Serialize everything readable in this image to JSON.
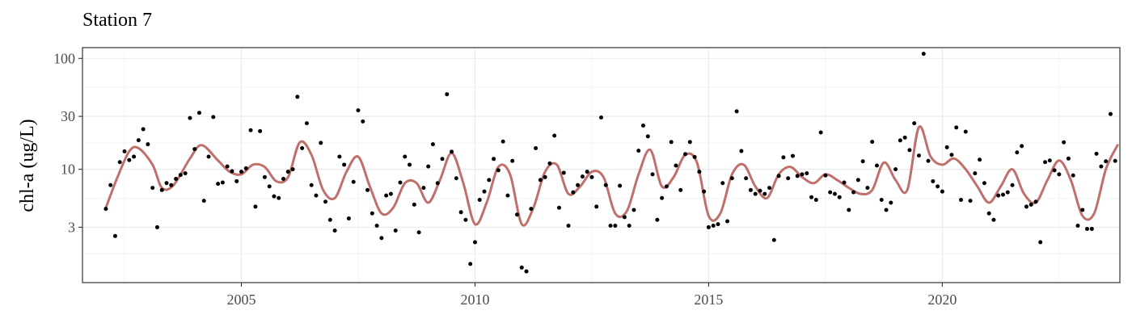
{
  "chart_data": {
    "type": "scatter",
    "title": "Station 7",
    "xlabel": "",
    "ylabel": "chl-a (ug/L)",
    "y_scale": "log10",
    "xlim": [
      2001.6,
      2023.8
    ],
    "ylim": [
      0.95,
      125
    ],
    "x_ticks": [
      2005,
      2010,
      2015,
      2020
    ],
    "x_minor_ticks": [
      2002.5,
      2007.5,
      2012.5,
      2017.5,
      2022.5
    ],
    "x_tick_labels": [
      "2005",
      "2010",
      "2015",
      "2020"
    ],
    "y_ticks": [
      3,
      10,
      30,
      100
    ],
    "y_minor_ticks": [
      1.732,
      5.477,
      17.32,
      54.77
    ],
    "y_tick_labels": [
      "3",
      "10",
      "30",
      "100"
    ],
    "grid": true,
    "colors": {
      "points": "#000000",
      "trend": "#c0706b",
      "grid": "#ebebeb",
      "panel_border": "#333333"
    },
    "series": [
      {
        "kind": "points",
        "points": [
          [
            2002.1,
            4.4
          ],
          [
            2002.2,
            7.2
          ],
          [
            2002.3,
            2.5
          ],
          [
            2002.4,
            11.6
          ],
          [
            2002.5,
            14.5
          ],
          [
            2002.6,
            12.1
          ],
          [
            2002.7,
            13.0
          ],
          [
            2002.8,
            18.3
          ],
          [
            2002.9,
            23.0
          ],
          [
            2003.0,
            16.8
          ],
          [
            2003.1,
            6.8
          ],
          [
            2003.2,
            3.0
          ],
          [
            2003.3,
            6.5
          ],
          [
            2003.4,
            7.5
          ],
          [
            2003.5,
            7.2
          ],
          [
            2003.6,
            8.2
          ],
          [
            2003.7,
            8.9
          ],
          [
            2003.8,
            9.2
          ],
          [
            2003.9,
            29.0
          ],
          [
            2004.0,
            15.2
          ],
          [
            2004.1,
            32.3
          ],
          [
            2004.2,
            5.2
          ],
          [
            2004.3,
            13.0
          ],
          [
            2004.4,
            29.6
          ],
          [
            2004.5,
            7.4
          ],
          [
            2004.6,
            7.6
          ],
          [
            2004.7,
            10.6
          ],
          [
            2004.8,
            9.6
          ],
          [
            2004.9,
            7.8
          ],
          [
            2005.0,
            9.5
          ],
          [
            2005.1,
            10.2
          ],
          [
            2005.2,
            22.5
          ],
          [
            2005.3,
            4.6
          ],
          [
            2005.4,
            22.1
          ],
          [
            2005.5,
            8.5
          ],
          [
            2005.6,
            7.0
          ],
          [
            2005.7,
            5.7
          ],
          [
            2005.8,
            5.5
          ],
          [
            2005.9,
            8.2
          ],
          [
            2006.0,
            9.5
          ],
          [
            2006.1,
            10.0
          ],
          [
            2006.2,
            45.0
          ],
          [
            2006.3,
            15.5
          ],
          [
            2006.4,
            26.0
          ],
          [
            2006.5,
            7.2
          ],
          [
            2006.6,
            5.8
          ],
          [
            2006.7,
            17.3
          ],
          [
            2006.8,
            5.1
          ],
          [
            2006.9,
            3.5
          ],
          [
            2007.0,
            2.8
          ],
          [
            2007.1,
            13.0
          ],
          [
            2007.2,
            11.0
          ],
          [
            2007.3,
            3.6
          ],
          [
            2007.4,
            7.7
          ],
          [
            2007.5,
            34.0
          ],
          [
            2007.6,
            27.0
          ],
          [
            2007.7,
            6.5
          ],
          [
            2007.8,
            4.0
          ],
          [
            2007.9,
            3.1
          ],
          [
            2008.0,
            2.4
          ],
          [
            2008.1,
            5.8
          ],
          [
            2008.2,
            6.0
          ],
          [
            2008.3,
            2.8
          ],
          [
            2008.4,
            7.6
          ],
          [
            2008.5,
            13.0
          ],
          [
            2008.6,
            11.0
          ],
          [
            2008.7,
            4.8
          ],
          [
            2008.8,
            2.7
          ],
          [
            2008.9,
            6.8
          ],
          [
            2009.0,
            10.6
          ],
          [
            2009.1,
            16.8
          ],
          [
            2009.2,
            7.5
          ],
          [
            2009.3,
            12.4
          ],
          [
            2009.4,
            47.5
          ],
          [
            2009.5,
            14.4
          ],
          [
            2009.6,
            8.3
          ],
          [
            2009.7,
            4.1
          ],
          [
            2009.8,
            3.5
          ],
          [
            2009.9,
            1.4
          ],
          [
            2010.0,
            2.2
          ],
          [
            2010.1,
            5.3
          ],
          [
            2010.2,
            6.3
          ],
          [
            2010.3,
            8.0
          ],
          [
            2010.4,
            12.4
          ],
          [
            2010.5,
            9.8
          ],
          [
            2010.6,
            17.8
          ],
          [
            2010.7,
            5.8
          ],
          [
            2010.8,
            11.9
          ],
          [
            2010.9,
            3.9
          ],
          [
            2011.0,
            1.3
          ],
          [
            2011.1,
            1.2
          ],
          [
            2011.2,
            4.4
          ],
          [
            2011.3,
            15.5
          ],
          [
            2011.4,
            8.0
          ],
          [
            2011.5,
            8.5
          ],
          [
            2011.6,
            11.3
          ],
          [
            2011.7,
            20.1
          ],
          [
            2011.8,
            4.5
          ],
          [
            2011.9,
            9.3
          ],
          [
            2012.0,
            3.1
          ],
          [
            2012.1,
            6.2
          ],
          [
            2012.2,
            7.2
          ],
          [
            2012.3,
            8.6
          ],
          [
            2012.4,
            9.5
          ],
          [
            2012.5,
            8.5
          ],
          [
            2012.6,
            4.6
          ],
          [
            2012.7,
            29.3
          ],
          [
            2012.8,
            7.2
          ],
          [
            2012.9,
            3.1
          ],
          [
            2013.0,
            3.1
          ],
          [
            2013.1,
            7.1
          ],
          [
            2013.2,
            3.7
          ],
          [
            2013.3,
            3.1
          ],
          [
            2013.4,
            4.3
          ],
          [
            2013.5,
            14.7
          ],
          [
            2013.6,
            24.8
          ],
          [
            2013.7,
            19.8
          ],
          [
            2013.8,
            9.0
          ],
          [
            2013.9,
            3.5
          ],
          [
            2014.0,
            5.5
          ],
          [
            2014.1,
            7.0
          ],
          [
            2014.2,
            17.6
          ],
          [
            2014.3,
            10.8
          ],
          [
            2014.4,
            6.5
          ],
          [
            2014.5,
            13.7
          ],
          [
            2014.6,
            17.6
          ],
          [
            2014.7,
            12.9
          ],
          [
            2014.8,
            9.5
          ],
          [
            2014.9,
            6.3
          ],
          [
            2015.0,
            3.0
          ],
          [
            2015.1,
            3.1
          ],
          [
            2015.2,
            3.2
          ],
          [
            2015.3,
            7.5
          ],
          [
            2015.4,
            3.4
          ],
          [
            2015.5,
            8.3
          ],
          [
            2015.6,
            33.3
          ],
          [
            2015.7,
            14.6
          ],
          [
            2015.8,
            8.3
          ],
          [
            2015.9,
            6.5
          ],
          [
            2016.0,
            6.0
          ],
          [
            2016.1,
            6.4
          ],
          [
            2016.2,
            6.0
          ],
          [
            2016.3,
            6.8
          ],
          [
            2016.4,
            2.3
          ],
          [
            2016.5,
            8.7
          ],
          [
            2016.6,
            12.8
          ],
          [
            2016.7,
            8.3
          ],
          [
            2016.8,
            13.2
          ],
          [
            2016.9,
            8.7
          ],
          [
            2017.0,
            9.0
          ],
          [
            2017.1,
            9.2
          ],
          [
            2017.2,
            5.6
          ],
          [
            2017.3,
            5.3
          ],
          [
            2017.4,
            21.5
          ],
          [
            2017.5,
            8.8
          ],
          [
            2017.6,
            6.2
          ],
          [
            2017.7,
            6.0
          ],
          [
            2017.8,
            5.6
          ],
          [
            2017.9,
            7.6
          ],
          [
            2018.0,
            4.3
          ],
          [
            2018.1,
            6.2
          ],
          [
            2018.2,
            8.0
          ],
          [
            2018.3,
            11.8
          ],
          [
            2018.4,
            6.8
          ],
          [
            2018.5,
            17.7
          ],
          [
            2018.6,
            10.8
          ],
          [
            2018.7,
            5.3
          ],
          [
            2018.8,
            4.3
          ],
          [
            2018.9,
            5.0
          ],
          [
            2019.0,
            10.0
          ],
          [
            2019.1,
            18.2
          ],
          [
            2019.2,
            19.3
          ],
          [
            2019.3,
            14.9
          ],
          [
            2019.4,
            26.0
          ],
          [
            2019.5,
            13.3
          ],
          [
            2019.6,
            110.0
          ],
          [
            2019.7,
            11.9
          ],
          [
            2019.8,
            7.8
          ],
          [
            2019.9,
            7.0
          ],
          [
            2020.0,
            6.3
          ],
          [
            2020.1,
            15.8
          ],
          [
            2020.2,
            13.5
          ],
          [
            2020.3,
            23.8
          ],
          [
            2020.4,
            5.3
          ],
          [
            2020.5,
            21.8
          ],
          [
            2020.6,
            5.2
          ],
          [
            2020.7,
            9.2
          ],
          [
            2020.8,
            12.2
          ],
          [
            2020.9,
            7.5
          ],
          [
            2021.0,
            4.0
          ],
          [
            2021.1,
            3.5
          ],
          [
            2021.2,
            5.8
          ],
          [
            2021.3,
            5.9
          ],
          [
            2021.4,
            6.2
          ],
          [
            2021.5,
            7.2
          ],
          [
            2021.6,
            14.2
          ],
          [
            2021.7,
            16.2
          ],
          [
            2021.8,
            4.6
          ],
          [
            2021.9,
            4.8
          ],
          [
            2022.0,
            5.1
          ],
          [
            2022.1,
            2.2
          ],
          [
            2022.2,
            11.6
          ],
          [
            2022.3,
            12.0
          ],
          [
            2022.4,
            9.8
          ],
          [
            2022.5,
            9.0
          ],
          [
            2022.6,
            17.5
          ],
          [
            2022.7,
            12.5
          ],
          [
            2022.8,
            8.8
          ],
          [
            2022.9,
            3.1
          ],
          [
            2023.0,
            4.3
          ],
          [
            2023.1,
            2.9
          ],
          [
            2023.2,
            2.9
          ],
          [
            2023.3,
            13.8
          ],
          [
            2023.4,
            10.6
          ],
          [
            2023.5,
            11.8
          ],
          [
            2023.6,
            31.5
          ],
          [
            2023.7,
            11.9
          ]
        ]
      },
      {
        "kind": "smooth",
        "points": [
          [
            2002.1,
            4.5
          ],
          [
            2002.35,
            8.5
          ],
          [
            2002.6,
            14.5
          ],
          [
            2002.8,
            15.5
          ],
          [
            2003.1,
            11.0
          ],
          [
            2003.3,
            6.8
          ],
          [
            2003.55,
            7.2
          ],
          [
            2003.9,
            12.5
          ],
          [
            2004.15,
            16.5
          ],
          [
            2004.5,
            12.0
          ],
          [
            2004.75,
            9.5
          ],
          [
            2005.0,
            9.0
          ],
          [
            2005.25,
            11.0
          ],
          [
            2005.5,
            10.5
          ],
          [
            2005.75,
            7.8
          ],
          [
            2006.0,
            8.5
          ],
          [
            2006.25,
            17.5
          ],
          [
            2006.5,
            13.5
          ],
          [
            2006.75,
            6.5
          ],
          [
            2007.0,
            5.5
          ],
          [
            2007.25,
            9.5
          ],
          [
            2007.5,
            13.0
          ],
          [
            2007.75,
            7.0
          ],
          [
            2008.0,
            4.0
          ],
          [
            2008.25,
            4.5
          ],
          [
            2008.5,
            7.5
          ],
          [
            2008.75,
            7.5
          ],
          [
            2009.0,
            5.0
          ],
          [
            2009.25,
            8.0
          ],
          [
            2009.5,
            14.0
          ],
          [
            2009.75,
            7.5
          ],
          [
            2010.0,
            3.2
          ],
          [
            2010.25,
            5.0
          ],
          [
            2010.5,
            10.5
          ],
          [
            2010.75,
            9.0
          ],
          [
            2011.0,
            3.2
          ],
          [
            2011.25,
            4.5
          ],
          [
            2011.5,
            9.5
          ],
          [
            2011.75,
            11.0
          ],
          [
            2012.0,
            6.0
          ],
          [
            2012.25,
            7.0
          ],
          [
            2012.5,
            9.5
          ],
          [
            2012.75,
            8.5
          ],
          [
            2013.0,
            4.0
          ],
          [
            2013.25,
            4.2
          ],
          [
            2013.5,
            9.0
          ],
          [
            2013.75,
            15.0
          ],
          [
            2014.0,
            7.0
          ],
          [
            2014.25,
            8.5
          ],
          [
            2014.5,
            13.5
          ],
          [
            2014.75,
            11.5
          ],
          [
            2015.0,
            3.8
          ],
          [
            2015.25,
            4.0
          ],
          [
            2015.5,
            9.0
          ],
          [
            2015.75,
            11.0
          ],
          [
            2016.0,
            7.0
          ],
          [
            2016.25,
            5.5
          ],
          [
            2016.5,
            9.0
          ],
          [
            2016.75,
            10.5
          ],
          [
            2017.0,
            8.5
          ],
          [
            2017.25,
            7.5
          ],
          [
            2017.5,
            9.0
          ],
          [
            2017.75,
            8.0
          ],
          [
            2018.0,
            6.8
          ],
          [
            2018.25,
            6.0
          ],
          [
            2018.5,
            6.5
          ],
          [
            2018.75,
            11.5
          ],
          [
            2019.0,
            8.0
          ],
          [
            2019.25,
            6.5
          ],
          [
            2019.5,
            24.0
          ],
          [
            2019.75,
            13.0
          ],
          [
            2020.0,
            11.0
          ],
          [
            2020.25,
            12.5
          ],
          [
            2020.5,
            10.0
          ],
          [
            2020.75,
            7.0
          ],
          [
            2021.0,
            5.0
          ],
          [
            2021.25,
            7.0
          ],
          [
            2021.5,
            10.0
          ],
          [
            2021.75,
            6.0
          ],
          [
            2022.0,
            5.0
          ],
          [
            2022.25,
            8.0
          ],
          [
            2022.5,
            12.0
          ],
          [
            2022.75,
            8.0
          ],
          [
            2023.0,
            3.8
          ],
          [
            2023.25,
            4.0
          ],
          [
            2023.5,
            10.0
          ],
          [
            2023.75,
            16.5
          ]
        ]
      }
    ]
  }
}
